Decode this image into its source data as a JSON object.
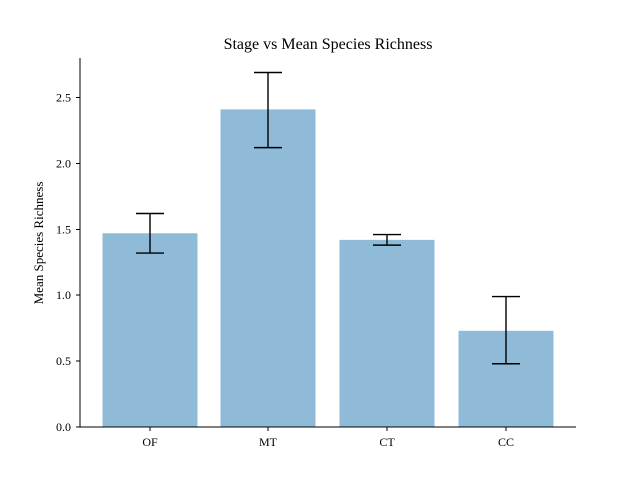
{
  "chart_data": {
    "type": "bar",
    "title": "Stage vs Mean Species Richness",
    "xlabel": "",
    "ylabel": "Mean Species Richness",
    "categories": [
      "OF",
      "MT",
      "CT",
      "CC"
    ],
    "values": [
      1.47,
      2.41,
      1.42,
      0.73
    ],
    "error_low": [
      1.32,
      2.12,
      1.38,
      0.48
    ],
    "error_high": [
      1.62,
      2.69,
      1.46,
      0.99
    ],
    "ylim": [
      0,
      2.8
    ],
    "yticks": [
      0.0,
      0.5,
      1.0,
      1.5,
      2.0,
      2.5
    ],
    "ytick_labels": [
      "0.0",
      "0.5",
      "1.0",
      "1.5",
      "2.0",
      "2.5"
    ],
    "grid": false,
    "legend": "none",
    "bar_color": "#8fbad8",
    "error_bar_color": "#000000"
  }
}
